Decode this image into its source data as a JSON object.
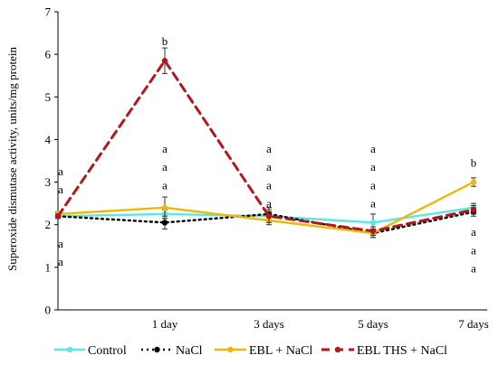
{
  "chart_data": {
    "type": "line",
    "title": "",
    "xlabel": "",
    "ylabel": "Superoxide dismutase activity, units/mg protein",
    "ylim": [
      0,
      7
    ],
    "yticks": [
      0,
      1,
      2,
      3,
      4,
      5,
      6,
      7
    ],
    "grid": false,
    "legend_position": "bottom",
    "categories": [
      "",
      "1 day",
      "3 days",
      "5 days",
      "7 days"
    ],
    "series": [
      {
        "name": "Control",
        "color": "#5ce6e6",
        "dash": "solid",
        "values": [
          2.2,
          2.25,
          2.2,
          2.05,
          2.4
        ],
        "errors": [
          0.05,
          0.1,
          0.1,
          0.2,
          0.1
        ]
      },
      {
        "name": "NaCl",
        "color": "#000000",
        "dash": "dotted",
        "values": [
          2.2,
          2.05,
          2.25,
          1.8,
          2.3
        ],
        "errors": [
          0.05,
          0.15,
          0.15,
          0.1,
          0.1
        ]
      },
      {
        "name": "EBL + NaCl",
        "color": "#f2b705",
        "dash": "solid",
        "values": [
          2.25,
          2.4,
          2.1,
          1.8,
          3.0
        ],
        "errors": [
          0.05,
          0.25,
          0.1,
          0.1,
          0.1
        ]
      },
      {
        "name": "EBL THS + NaCl",
        "color": "#b3171c",
        "dash": "dashed",
        "values": [
          2.2,
          5.85,
          2.2,
          1.85,
          2.35
        ],
        "errors": [
          0.05,
          0.3,
          0.15,
          0.1,
          0.1
        ]
      }
    ],
    "annotations": [
      {
        "text": "a",
        "x": 0,
        "y": 3.25
      },
      {
        "text": "a",
        "x": 0,
        "y": 2.82
      },
      {
        "text": "a",
        "x": 0,
        "y": 1.55
      },
      {
        "text": "a",
        "x": 0,
        "y": 1.12
      },
      {
        "text": "b",
        "x": 1,
        "y": 6.3
      },
      {
        "text": "a",
        "x": 1,
        "y": 3.78
      },
      {
        "text": "a",
        "x": 1,
        "y": 3.35
      },
      {
        "text": "a",
        "x": 1,
        "y": 2.92
      },
      {
        "text": "a",
        "x": 2,
        "y": 3.78
      },
      {
        "text": "a",
        "x": 2,
        "y": 3.35
      },
      {
        "text": "a",
        "x": 2,
        "y": 2.92
      },
      {
        "text": "a",
        "x": 2,
        "y": 2.49
      },
      {
        "text": "a",
        "x": 3,
        "y": 3.78
      },
      {
        "text": "a",
        "x": 3,
        "y": 3.35
      },
      {
        "text": "a",
        "x": 3,
        "y": 2.92
      },
      {
        "text": "a",
        "x": 3,
        "y": 2.49
      },
      {
        "text": "b",
        "x": 4,
        "y": 3.45
      },
      {
        "text": "a",
        "x": 4,
        "y": 1.82
      },
      {
        "text": "a",
        "x": 4,
        "y": 1.39
      },
      {
        "text": "a",
        "x": 4,
        "y": 0.96
      }
    ]
  }
}
